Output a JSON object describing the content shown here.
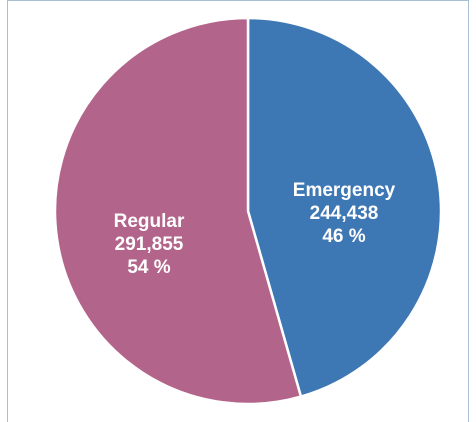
{
  "chart_data": {
    "type": "pie",
    "slices": [
      {
        "name": "Emergency",
        "value": 244438,
        "value_label": "244,438",
        "percent_label": "46 %",
        "color": "#3d77b4"
      },
      {
        "name": "Regular",
        "value": 291855,
        "value_label": "291,855",
        "percent_label": "54 %",
        "color": "#b3648a"
      }
    ],
    "start": "12 o'clock",
    "direction": "clockwise",
    "slice_border_color": "#ffffff",
    "legend": "none"
  }
}
